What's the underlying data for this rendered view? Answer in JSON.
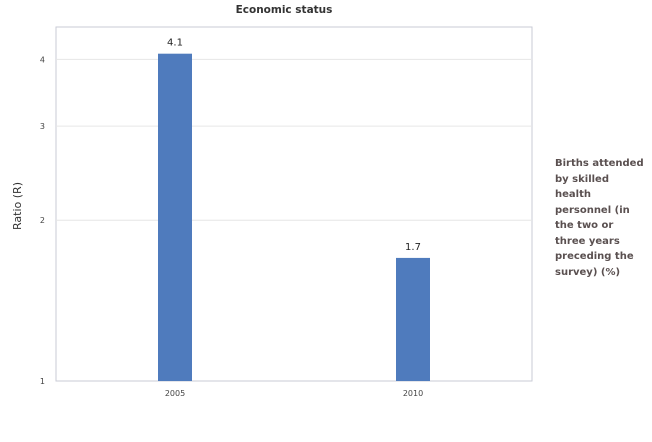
{
  "chart_data": {
    "type": "bar",
    "title": "Economic status",
    "xlabel": "",
    "ylabel": "Ratio (R)",
    "y_scale": "log",
    "ylim": [
      1,
      4.6
    ],
    "yticks": [
      "1",
      "2",
      "3",
      "4"
    ],
    "categories": [
      "2005",
      "2010"
    ],
    "series": [
      {
        "name": "Births attended by skilled health personnel (in the two or three years preceding the survey) (%)",
        "values": [
          4.1,
          1.7
        ],
        "labels": [
          "4.1",
          "1.7"
        ]
      }
    ],
    "legend_position": "right",
    "grid": true,
    "colors": {
      "bar": "#4f7bbd",
      "grid": "#e6e6e6",
      "axis": "#c9cbd6",
      "text": "#333333"
    }
  }
}
